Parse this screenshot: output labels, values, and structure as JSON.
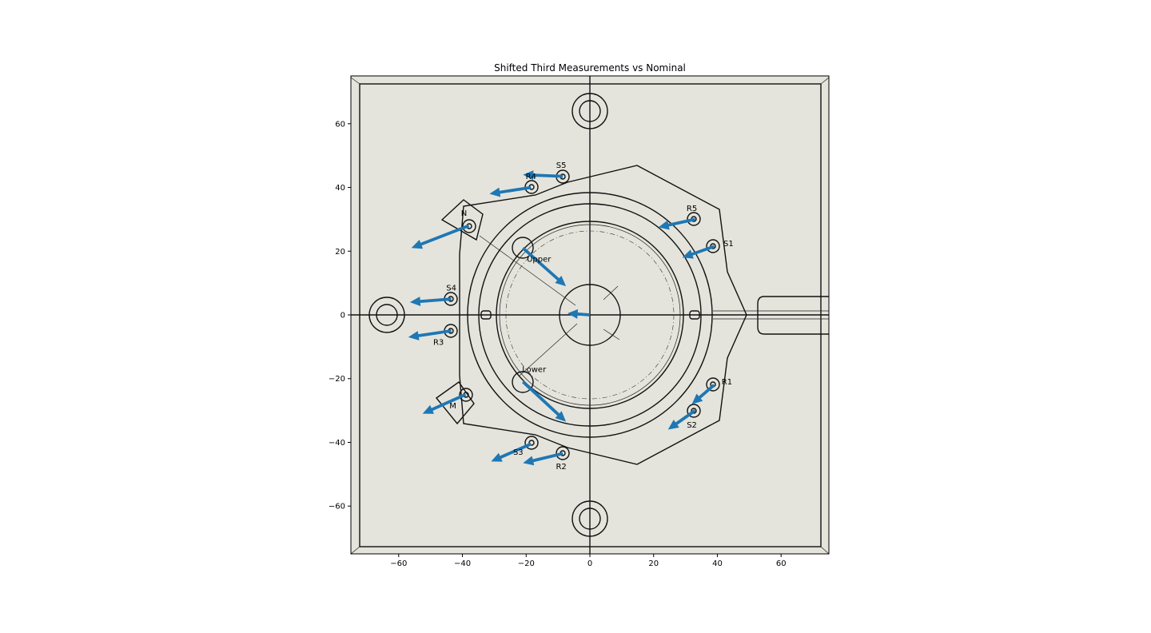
{
  "chart_data": {
    "type": "quiver",
    "title": "Shifted Third Measurements vs Nominal",
    "xlabel": "",
    "ylabel": "",
    "xlim": [
      -75,
      75
    ],
    "ylim": [
      -75,
      75
    ],
    "xticks": [
      -60,
      -40,
      -20,
      0,
      20,
      40,
      60
    ],
    "yticks": [
      60,
      40,
      20,
      0,
      -20,
      -40,
      -60
    ],
    "xtick_labels": [
      "−60",
      "−40",
      "−20",
      "0",
      "20",
      "40",
      "60"
    ],
    "ytick_labels": [
      "60",
      "40",
      "20",
      "0",
      "−20",
      "−40",
      "−60"
    ],
    "grid": false,
    "background_image": "part-drawing",
    "arrow_color": "#1f77b4",
    "points": [
      {
        "label": "S5",
        "x": -8.5,
        "y": 43.5,
        "dx": -12.5,
        "dy": 0.5,
        "lx": -9,
        "ly": 47
      },
      {
        "label": "R4",
        "x": -18.5,
        "y": 40,
        "dx": -13,
        "dy": -2,
        "lx": -18.5,
        "ly": 43.5
      },
      {
        "label": "N",
        "x": -38,
        "y": 28,
        "dx": -18,
        "dy": -7,
        "lx": -39.5,
        "ly": 32
      },
      {
        "label": "R5",
        "x": 33,
        "y": 30,
        "dx": -11.5,
        "dy": -2.5,
        "lx": 32,
        "ly": 33.5
      },
      {
        "label": "S1",
        "x": 39,
        "y": 21.5,
        "dx": -10,
        "dy": -3.5,
        "lx": 43.5,
        "ly": 22.5
      },
      {
        "label": "Upper",
        "x": -21,
        "y": 21,
        "dx": 13.5,
        "dy": -12,
        "lx": -16,
        "ly": 17.5
      },
      {
        "label": "S4",
        "x": -43.5,
        "y": 5,
        "dx": -13,
        "dy": -1,
        "lx": -43.5,
        "ly": 8.5
      },
      {
        "label": "",
        "x": 0,
        "y": 0,
        "dx": -7,
        "dy": 0.5,
        "lx": 0,
        "ly": 0
      },
      {
        "label": "R3",
        "x": -43.5,
        "y": -5,
        "dx": -13.5,
        "dy": -2,
        "lx": -47.5,
        "ly": -8.5
      },
      {
        "label": "Lower",
        "x": -21,
        "y": -21,
        "dx": 13.5,
        "dy": -12.5,
        "lx": -17.5,
        "ly": -17
      },
      {
        "label": "R1",
        "x": 39,
        "y": -22,
        "dx": -7,
        "dy": -6,
        "lx": 43,
        "ly": -21
      },
      {
        "label": "M",
        "x": -39,
        "y": -25,
        "dx": -13.5,
        "dy": -6,
        "lx": -43,
        "ly": -28.5
      },
      {
        "label": "S2",
        "x": 33,
        "y": -30,
        "dx": -8.5,
        "dy": -6,
        "lx": 32,
        "ly": -34.5
      },
      {
        "label": "S3",
        "x": -18.5,
        "y": -40.5,
        "dx": -12.5,
        "dy": -5.5,
        "lx": -22.5,
        "ly": -43
      },
      {
        "label": "R2",
        "x": -8.5,
        "y": -43.5,
        "dx": -12.5,
        "dy": -3,
        "lx": -9,
        "ly": -47.5
      }
    ]
  }
}
